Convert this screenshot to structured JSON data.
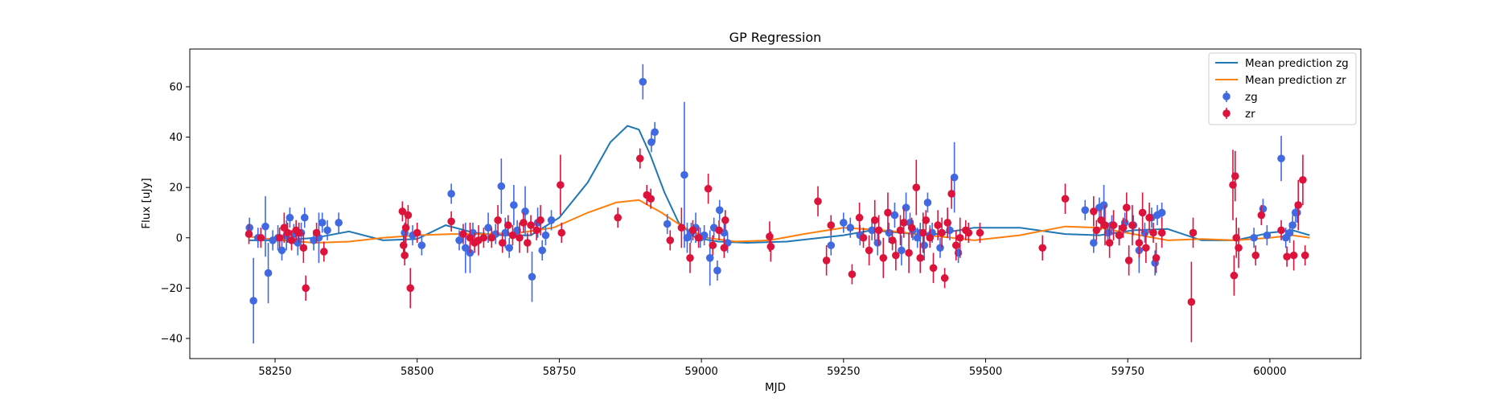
{
  "chart_data": {
    "type": "scatter",
    "title": "GP Regression",
    "xlabel": "MJD",
    "ylabel": "Flux [uJy]",
    "xlim": [
      58100,
      60160
    ],
    "ylim": [
      -48,
      75
    ],
    "xticks": [
      58250,
      58500,
      58750,
      59000,
      59250,
      59500,
      59750,
      60000
    ],
    "yticks": [
      -40,
      -20,
      0,
      20,
      40,
      60
    ],
    "legend_position": "upper right",
    "series": [
      {
        "name": "Mean prediction zg",
        "kind": "line",
        "color": "#1f77b4",
        "x": [
          58205,
          58260,
          58320,
          58380,
          58440,
          58500,
          58550,
          58600,
          58650,
          58700,
          58750,
          58800,
          58840,
          58870,
          58890,
          58910,
          58935,
          58960,
          58990,
          59030,
          59080,
          59150,
          59250,
          59300,
          59350,
          59400,
          59480,
          59560,
          59640,
          59700,
          59760,
          59820,
          59880,
          59940,
          60000,
          60040,
          60070
        ],
        "y": [
          -1,
          -1,
          0,
          2.5,
          -1,
          -0.5,
          5,
          2,
          1,
          1,
          8,
          22,
          38,
          44.5,
          43,
          33,
          18,
          6,
          0,
          -1.5,
          -2,
          -1.5,
          1,
          3,
          2,
          1,
          4,
          4,
          1.5,
          1,
          3,
          3.5,
          -1,
          -1,
          2,
          3,
          1
        ]
      },
      {
        "name": "Mean prediction zr",
        "kind": "line",
        "color": "#ff7f0e",
        "x": [
          58205,
          58260,
          58320,
          58380,
          58440,
          58500,
          58560,
          58620,
          58680,
          58740,
          58800,
          58850,
          58890,
          58930,
          58970,
          59010,
          59060,
          59120,
          59180,
          59250,
          59320,
          59400,
          59480,
          59560,
          59640,
          59700,
          59760,
          59820,
          59880,
          59940,
          60000,
          60040,
          60070
        ],
        "y": [
          0.5,
          -1,
          -2,
          -1.5,
          0,
          1,
          1.5,
          1.5,
          2,
          4,
          10,
          14,
          15,
          10,
          4,
          0,
          -1.5,
          -1,
          1.5,
          4,
          3,
          1,
          -1,
          1,
          4.5,
          4,
          1.5,
          -1,
          -0.5,
          -1,
          0,
          1,
          0
        ]
      },
      {
        "name": "zg",
        "kind": "errorbar",
        "color": "#4169e1",
        "x": [
          58205,
          58212,
          58220,
          58233,
          58238,
          58246,
          58255,
          58262,
          58270,
          58276,
          58283,
          58290,
          58296,
          58302,
          58318,
          58327,
          58333,
          58342,
          58362,
          58478,
          58492,
          58508,
          58560,
          58574,
          58585,
          58593,
          58598,
          58625,
          58638,
          58648,
          58655,
          58662,
          58670,
          58676,
          58690,
          58702,
          58712,
          58720,
          58726,
          58736,
          58897,
          58912,
          58918,
          58940,
          58970,
          58975,
          58982,
          58990,
          58998,
          59005,
          59015,
          59022,
          59028,
          59032,
          59040,
          59046,
          59228,
          59250,
          59262,
          59279,
          59300,
          59310,
          59330,
          59340,
          59352,
          59360,
          59367,
          59372,
          59380,
          59385,
          59392,
          59398,
          59402,
          59406,
          59420,
          59437,
          59445,
          59452,
          59675,
          59690,
          59700,
          59708,
          59715,
          59722,
          59735,
          59745,
          59760,
          59770,
          59780,
          59792,
          59798,
          59802,
          59810,
          59972,
          59988,
          59995,
          60020,
          60028,
          60035,
          60040,
          60045,
          60048
        ],
        "y": [
          4,
          -25,
          0,
          4.5,
          -14,
          -1,
          0,
          -5,
          1,
          8,
          1.5,
          -2,
          2,
          8,
          -1,
          0,
          6,
          3,
          6,
          2,
          1,
          -3,
          17.5,
          -1,
          -4,
          -6,
          2,
          4,
          1.5,
          20.5,
          2,
          -4,
          13,
          3,
          10.5,
          -15.5,
          6,
          -5,
          1,
          7,
          62,
          38,
          42,
          5.5,
          25,
          0,
          2,
          4,
          0,
          1,
          -8,
          4,
          -13,
          11,
          2,
          -2,
          -3,
          6,
          4,
          1,
          3,
          -2,
          2,
          9,
          -5,
          12,
          6,
          3,
          0,
          2,
          -3,
          14,
          1,
          2,
          -4,
          3,
          24,
          -6,
          11,
          -2,
          12,
          13,
          2,
          5,
          1,
          6,
          5,
          -5,
          2,
          8,
          -10,
          9,
          10,
          0,
          11.5,
          1,
          31.5,
          0,
          2,
          5,
          10,
          10
        ],
        "err": [
          4,
          17,
          4,
          12,
          12,
          4,
          5,
          4,
          6,
          4,
          4,
          5,
          4,
          4,
          4,
          10,
          4,
          4,
          4,
          4,
          4,
          4,
          4,
          4,
          10,
          8,
          4,
          6,
          4,
          11,
          6,
          4,
          8,
          4,
          10,
          10,
          6,
          4,
          4,
          4,
          7,
          4,
          4,
          4,
          29,
          6,
          4,
          6,
          4,
          4,
          11,
          4,
          4,
          4,
          4,
          4,
          4,
          4,
          4,
          4,
          4,
          5,
          4,
          5,
          6,
          6,
          4,
          4,
          4,
          4,
          6,
          4,
          4,
          4,
          4,
          4,
          14,
          4,
          4,
          4,
          4,
          8,
          4,
          4,
          4,
          4,
          4,
          9,
          4,
          4,
          5,
          4,
          4,
          4,
          4,
          4,
          9,
          4,
          4,
          4,
          4,
          4
        ]
      },
      {
        "name": "zr",
        "kind": "errorbar",
        "color": "#dc143c",
        "x": [
          58204,
          58225,
          58258,
          58266,
          58272,
          58279,
          58287,
          58292,
          58300,
          58304,
          58323,
          58336,
          58474,
          58476,
          58478,
          58480,
          58484,
          58488,
          58500,
          58560,
          58581,
          58593,
          58601,
          58608,
          58617,
          58631,
          58642,
          58650,
          58660,
          58668,
          58680,
          58687,
          58694,
          58700,
          58710,
          58717,
          58752,
          58754,
          58853,
          58892,
          58904,
          58911,
          58945,
          58965,
          58980,
          58985,
          58995,
          59012,
          59020,
          59031,
          59040,
          59042,
          59120,
          59122,
          59205,
          59220,
          59228,
          59265,
          59278,
          59285,
          59295,
          59305,
          59312,
          59320,
          59328,
          59336,
          59342,
          59350,
          59356,
          59365,
          59370,
          59378,
          59385,
          59390,
          59395,
          59402,
          59408,
          59416,
          59423,
          59428,
          59433,
          59440,
          59448,
          59455,
          59465,
          59470,
          59490,
          59600,
          59640,
          59690,
          59695,
          59703,
          59710,
          59718,
          59725,
          59735,
          59742,
          59748,
          59752,
          59758,
          59770,
          59776,
          59782,
          59788,
          59795,
          59800,
          59810,
          59862,
          59865,
          59935,
          59937,
          59939,
          59941,
          59945,
          59975,
          59985,
          60020,
          60030,
          60042,
          60050,
          60058,
          60062
        ],
        "y": [
          1.5,
          0,
          0,
          4,
          2,
          -1,
          3,
          2,
          -4,
          -20,
          2,
          -5.5,
          10.5,
          -3,
          -7,
          4,
          9,
          -20,
          2,
          6.5,
          1.5,
          0,
          -2,
          -1,
          0,
          0,
          7,
          -2,
          5,
          1,
          0,
          6,
          -2,
          5,
          3,
          7,
          21,
          2,
          8,
          31.5,
          17,
          15.5,
          -1,
          4,
          -8,
          3,
          0,
          19.5,
          -3,
          3,
          -4,
          7,
          0.5,
          -3.5,
          14.5,
          -9,
          5,
          -14.5,
          8,
          0,
          -5,
          7,
          3,
          -8,
          10,
          -1,
          -7,
          3,
          6,
          -6,
          4,
          20,
          -8,
          2,
          7,
          0,
          -12,
          5,
          2,
          -16,
          6,
          17.5,
          -3,
          0,
          3,
          2,
          2,
          -4,
          15.5,
          10.5,
          3,
          7,
          5,
          -2,
          5,
          1,
          4,
          12,
          -9,
          5,
          -2,
          10,
          -4,
          8,
          2,
          -8,
          2,
          -25.5,
          2,
          21,
          -15,
          24.5,
          0,
          -4,
          -7,
          9,
          3,
          -7.5,
          -7,
          13,
          23,
          -7
        ],
        "err": [
          4,
          4,
          4,
          6,
          4,
          4,
          4,
          4,
          6,
          5,
          4,
          4,
          4,
          4,
          4,
          6,
          4,
          8,
          4,
          4,
          4,
          6,
          4,
          6,
          4,
          4,
          6,
          4,
          4,
          4,
          6,
          4,
          4,
          4,
          4,
          6,
          12,
          4,
          4,
          4,
          4,
          4,
          4,
          8,
          6,
          4,
          4,
          6,
          4,
          4,
          4,
          4,
          6,
          6,
          6,
          6,
          4,
          4,
          6,
          4,
          6,
          8,
          6,
          8,
          8,
          4,
          6,
          6,
          6,
          8,
          4,
          11,
          6,
          8,
          4,
          4,
          6,
          6,
          6,
          4,
          6,
          6,
          6,
          8,
          4,
          4,
          4,
          5,
          6,
          6,
          4,
          4,
          8,
          6,
          6,
          4,
          4,
          6,
          6,
          8,
          6,
          8,
          6,
          6,
          4,
          6,
          6,
          16,
          6,
          14,
          8,
          10,
          8,
          8,
          4,
          4,
          4,
          4,
          6,
          10,
          10,
          4
        ]
      }
    ]
  }
}
